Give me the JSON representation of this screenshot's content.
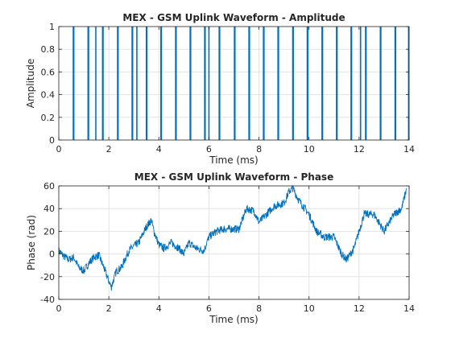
{
  "chart_data": [
    {
      "type": "line",
      "title": "MEX - GSM Uplink Waveform - Amplitude",
      "xlabel": "Time (ms)",
      "ylabel": "Amplitude",
      "xlim": [
        0,
        14
      ],
      "ylim": [
        0,
        1
      ],
      "xticks": [
        "0",
        "2",
        "4",
        "6",
        "8",
        "10",
        "12",
        "14"
      ],
      "yticks": [
        "0",
        "0.2",
        "0.4",
        "0.6",
        "0.8",
        "1"
      ],
      "grid": true,
      "color": "#0072bd",
      "series": [
        {
          "x": [
            0.58,
            0.6,
            1.17,
            1.19,
            1.48,
            1.75,
            1.77,
            2.35,
            2.37,
            2.93,
            2.95,
            3.12,
            3.5,
            3.52,
            4.08,
            4.1,
            4.67,
            4.69,
            5.25,
            5.27,
            5.83,
            5.85,
            6.0,
            6.41,
            6.43,
            7.02,
            7.04,
            7.6,
            7.62,
            8.18,
            8.2,
            8.76,
            8.78,
            9.35,
            9.37,
            9.93,
            9.95,
            10.52,
            10.54,
            11.1,
            11.12,
            11.68,
            11.7,
            12.06,
            12.26,
            12.28,
            12.85,
            12.87,
            13.44,
            13.46,
            13.98
          ],
          "y": [
            1,
            1,
            1,
            1,
            1,
            1,
            1,
            1,
            1,
            1,
            1,
            1,
            1,
            1,
            1,
            1,
            1,
            1,
            1,
            1,
            1,
            1,
            1,
            1,
            1,
            1,
            1,
            1,
            1,
            1,
            1,
            1,
            1,
            1,
            1,
            1,
            1,
            1,
            1,
            1,
            1,
            1,
            1,
            1,
            1,
            1,
            1,
            1,
            1,
            1,
            1
          ]
        }
      ]
    },
    {
      "type": "line",
      "title": "MEX - GSM Uplink Waveform - Phase",
      "xlabel": "Time (ms)",
      "ylabel": "Phase (rad)",
      "xlim": [
        0,
        14
      ],
      "ylim": [
        -40,
        60
      ],
      "xticks": [
        "0",
        "2",
        "4",
        "6",
        "8",
        "10",
        "12",
        "14"
      ],
      "yticks": [
        "-40",
        "-20",
        "0",
        "20",
        "40",
        "60"
      ],
      "grid": true,
      "color": "#0072bd",
      "series": [
        {
          "x": [
            0.0,
            0.2,
            0.4,
            0.6,
            0.8,
            1.0,
            1.2,
            1.4,
            1.6,
            1.8,
            2.0,
            2.1,
            2.3,
            2.5,
            2.8,
            3.0,
            3.2,
            3.5,
            3.7,
            3.8,
            4.0,
            4.2,
            4.5,
            4.8,
            5.0,
            5.2,
            5.5,
            5.8,
            6.0,
            6.3,
            6.6,
            6.9,
            7.2,
            7.5,
            7.8,
            8.0,
            8.3,
            8.6,
            9.0,
            9.2,
            9.35,
            9.6,
            10.0,
            10.3,
            10.6,
            11.0,
            11.3,
            11.5,
            11.8,
            12.2,
            12.6,
            13.0,
            13.4,
            13.7,
            13.9
          ],
          "y": [
            3,
            -2,
            -5,
            -3,
            -12,
            -15,
            -8,
            -3,
            -1,
            -12,
            -24,
            -29,
            -15,
            -12,
            3,
            7,
            10,
            24,
            30,
            20,
            8,
            5,
            10,
            5,
            0,
            10,
            5,
            3,
            15,
            20,
            22,
            22,
            22,
            40,
            38,
            28,
            35,
            42,
            45,
            55,
            58,
            47,
            35,
            20,
            15,
            15,
            0,
            -5,
            5,
            35,
            35,
            20,
            35,
            40,
            58
          ]
        }
      ]
    }
  ]
}
